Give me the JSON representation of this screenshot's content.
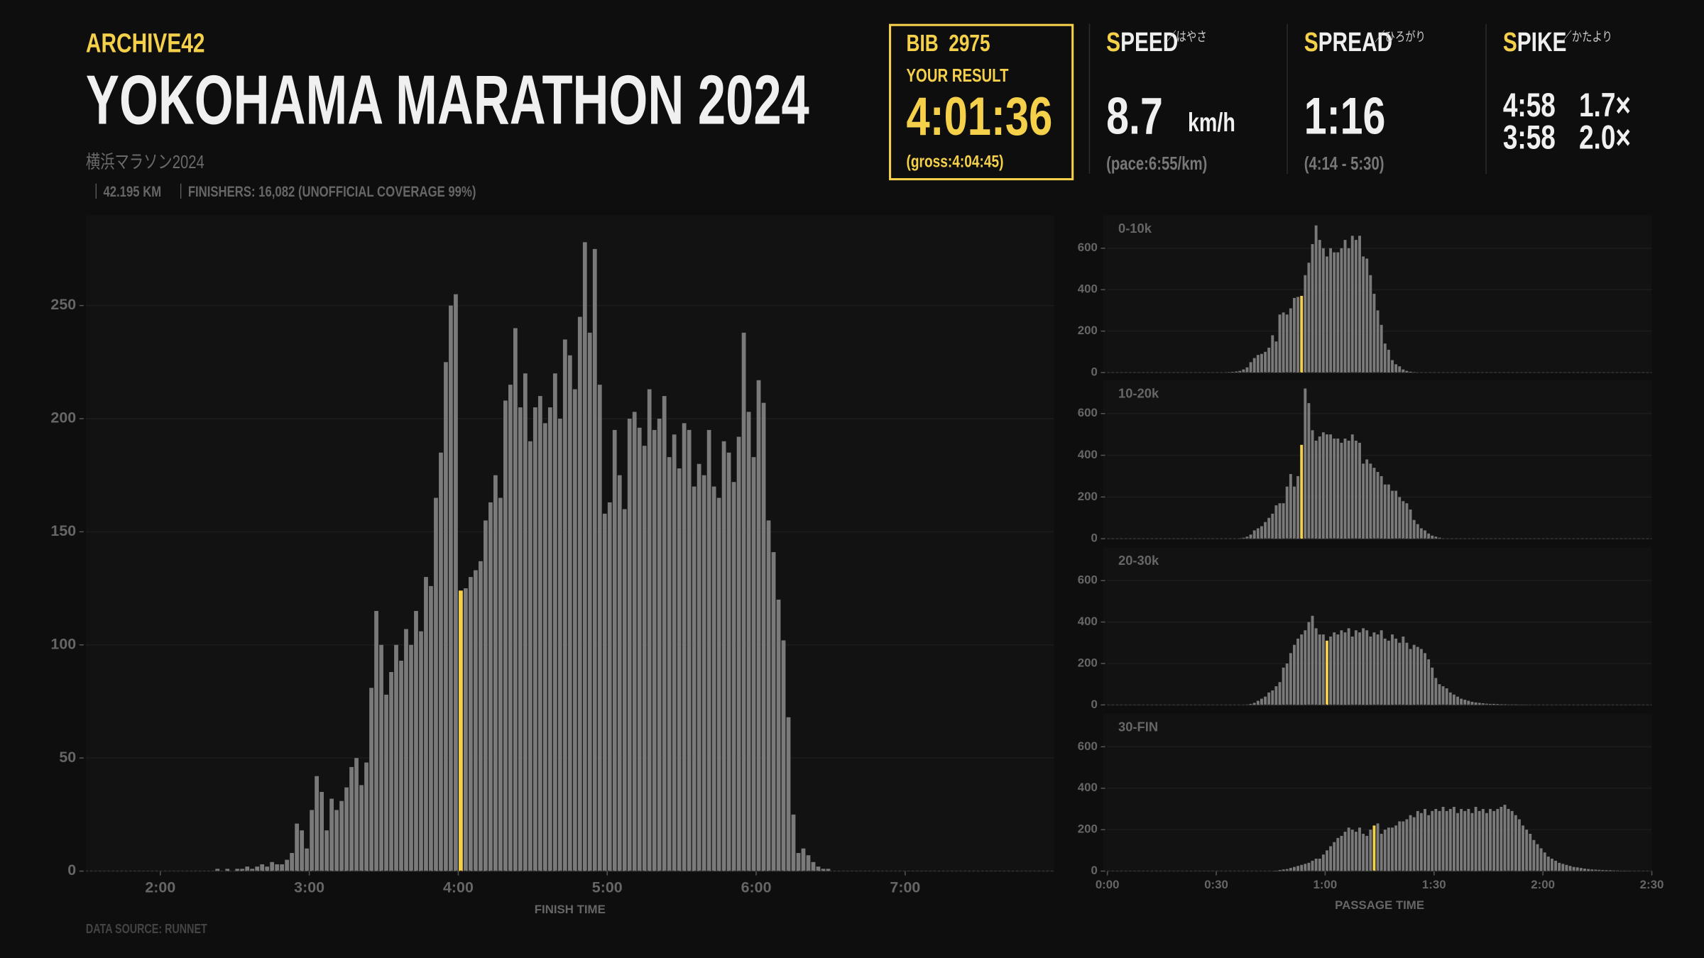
{
  "header": {
    "brand": "ARCHIVE42",
    "title": "YOKOHAMA MARATHON 2024",
    "subtitle": "横浜マラソン2024",
    "distance": "42.195 KM",
    "finishers": "FINISHERS: 16,082 (UNOFFICIAL  COVERAGE 99%)",
    "source": "DATA SOURCE: RUNNET"
  },
  "result": {
    "bib_label": "BIB",
    "bib": "2975",
    "label": "YOUR RESULT",
    "time": "4:01:36",
    "gross": "(gross:4:04:45)"
  },
  "speed": {
    "title": "SPEED",
    "kana": "／はやさ",
    "value": "8.7",
    "unit": "km/h",
    "note": "(pace:6:55/km)"
  },
  "spread": {
    "title": "SPREAD",
    "kana": "／ひろがり",
    "value": "1:16",
    "note": "(4:14 - 5:30)"
  },
  "spike": {
    "title": "SPIKE",
    "kana": "／かたより",
    "rows": [
      [
        "4:58",
        "1.7×"
      ],
      [
        "3:58",
        "2.0×"
      ]
    ]
  },
  "chart_data": [
    {
      "type": "histogram",
      "x_label": "FINISH TIME",
      "color": "#7a7a7a",
      "highlight_index": 50,
      "highlight_color": "#f5d04a",
      "grid": true,
      "xlim": [
        90,
        480
      ],
      "ylim": [
        0,
        290
      ],
      "xticks": [
        {
          "value": 120,
          "label": "2:00"
        },
        {
          "value": 180,
          "label": "3:00"
        },
        {
          "value": 240,
          "label": "4:00"
        },
        {
          "value": 300,
          "label": "5:00"
        },
        {
          "value": 360,
          "label": "6:00"
        },
        {
          "value": 420,
          "label": "7:00"
        }
      ],
      "yticks": [
        0,
        50,
        100,
        150,
        200,
        250
      ],
      "bins": [
        140,
        142,
        144,
        146,
        148,
        150,
        152,
        154,
        156,
        158,
        160,
        162,
        164,
        166,
        168,
        170,
        172,
        174,
        176,
        178,
        180,
        182,
        184,
        186,
        188,
        190,
        192,
        194,
        196,
        198,
        200,
        202,
        204,
        206,
        208,
        210,
        212,
        214,
        216,
        218,
        220,
        222,
        224,
        226,
        228,
        230,
        232,
        234,
        236,
        238,
        240,
        242,
        244,
        246,
        248,
        250,
        252,
        254,
        256,
        258,
        260,
        262,
        264,
        266,
        268,
        270,
        272,
        274,
        276,
        278,
        280,
        282,
        284,
        286,
        288,
        290,
        292,
        294,
        296,
        298,
        300,
        302,
        304,
        306,
        308,
        310,
        312,
        314,
        316,
        318,
        320,
        322,
        324,
        326,
        328,
        330,
        332,
        334,
        336,
        338,
        340,
        342,
        344,
        346,
        348,
        350,
        352,
        354,
        356,
        358,
        360,
        362,
        364,
        366,
        368,
        370,
        372,
        374,
        376,
        378,
        380,
        382,
        384,
        386,
        388,
        390
      ],
      "values": [
        0,
        1,
        0,
        1,
        0,
        1,
        1,
        2,
        1,
        2,
        3,
        2,
        4,
        3,
        3,
        5,
        8,
        21,
        18,
        10,
        27,
        42,
        35,
        18,
        32,
        27,
        31,
        37,
        46,
        50,
        38,
        48,
        81,
        115,
        100,
        78,
        88,
        100,
        93,
        107,
        100,
        115,
        106,
        130,
        126,
        165,
        185,
        225,
        250,
        255,
        124,
        125,
        130,
        133,
        137,
        155,
        163,
        175,
        165,
        208,
        215,
        240,
        205,
        220,
        190,
        205,
        210,
        198,
        205,
        220,
        200,
        235,
        228,
        213,
        245,
        278,
        238,
        275,
        215,
        158,
        163,
        195,
        175,
        160,
        200,
        203,
        196,
        188,
        213,
        195,
        200,
        210,
        183,
        193,
        178,
        198,
        195,
        170,
        180,
        175,
        195,
        170,
        165,
        190,
        185,
        172,
        192,
        238,
        203,
        183,
        217,
        207,
        155,
        141,
        120,
        102,
        68,
        25,
        8,
        10,
        7,
        4,
        2,
        1,
        1
      ]
    },
    {
      "type": "histogram",
      "title": "0-10k",
      "color": "#7a7a7a",
      "highlight_index": 20,
      "highlight_color": "#f5d04a",
      "grid": true,
      "xlim": [
        0,
        150
      ],
      "ylim": [
        0,
        760
      ],
      "yticks": [
        0,
        200,
        400,
        600
      ],
      "bins": [
        33,
        34,
        35,
        36,
        37,
        38,
        39,
        40,
        41,
        42,
        43,
        44,
        45,
        46,
        47,
        48,
        49,
        50,
        51,
        52,
        53,
        54,
        55,
        56,
        57,
        58,
        59,
        60,
        61,
        62,
        63,
        64,
        65,
        66,
        67,
        68,
        69,
        70,
        71,
        72,
        73,
        74,
        75,
        76,
        77,
        78,
        79,
        80,
        81,
        82,
        83,
        84,
        85
      ],
      "values": [
        2,
        3,
        5,
        8,
        15,
        25,
        50,
        70,
        85,
        90,
        100,
        120,
        180,
        150,
        280,
        290,
        280,
        310,
        360,
        365,
        370,
        470,
        530,
        620,
        710,
        640,
        600,
        560,
        600,
        580,
        580,
        600,
        640,
        600,
        660,
        640,
        660,
        560,
        550,
        470,
        380,
        300,
        230,
        140,
        110,
        60,
        40,
        30,
        15,
        8,
        4,
        2
      ]
    },
    {
      "type": "histogram",
      "title": "10-20k",
      "color": "#7a7a7a",
      "highlight_index": 17,
      "highlight_color": "#f5d04a",
      "grid": true,
      "xlim": [
        0,
        150
      ],
      "ylim": [
        0,
        760
      ],
      "yticks": [
        0,
        200,
        400,
        600
      ],
      "bins": [
        36,
        37,
        38,
        39,
        40,
        41,
        42,
        43,
        44,
        45,
        46,
        47,
        48,
        49,
        50,
        51,
        52,
        53,
        54,
        55,
        56,
        57,
        58,
        59,
        60,
        61,
        62,
        63,
        64,
        65,
        66,
        67,
        68,
        69,
        70,
        71,
        72,
        73,
        74,
        75,
        76,
        77,
        78,
        79,
        80,
        81,
        82,
        83,
        84,
        85,
        86,
        87,
        88,
        89,
        90,
        91,
        92
      ],
      "values": [
        2,
        5,
        10,
        20,
        40,
        50,
        60,
        80,
        100,
        120,
        160,
        170,
        170,
        250,
        310,
        250,
        300,
        450,
        720,
        650,
        520,
        470,
        490,
        510,
        500,
        500,
        480,
        480,
        460,
        480,
        470,
        500,
        470,
        460,
        360,
        380,
        360,
        340,
        320,
        300,
        260,
        260,
        230,
        230,
        200,
        180,
        170,
        140,
        90,
        70,
        50,
        40,
        25,
        15,
        10,
        5
      ]
    },
    {
      "type": "histogram",
      "title": "20-30k",
      "color": "#7a7a7a",
      "highlight_index": 22,
      "highlight_color": "#f5d04a",
      "grid": true,
      "xlim": [
        0,
        150
      ],
      "ylim": [
        0,
        760
      ],
      "yticks": [
        0,
        200,
        400,
        600
      ],
      "bins": [
        38,
        39,
        40,
        41,
        42,
        43,
        44,
        45,
        46,
        47,
        48,
        49,
        50,
        51,
        52,
        53,
        54,
        55,
        56,
        57,
        58,
        59,
        60,
        61,
        62,
        63,
        64,
        65,
        66,
        67,
        68,
        69,
        70,
        71,
        72,
        73,
        74,
        75,
        76,
        77,
        78,
        79,
        80,
        81,
        82,
        83,
        84,
        85,
        86,
        87,
        88,
        89,
        90,
        91,
        92,
        93,
        94,
        95,
        96,
        97,
        98,
        99,
        100,
        101,
        102,
        103,
        104,
        105,
        106,
        107,
        108,
        109,
        110,
        111,
        112,
        113,
        114,
        115,
        116
      ],
      "values": [
        2,
        5,
        10,
        20,
        30,
        40,
        60,
        70,
        90,
        110,
        180,
        200,
        250,
        290,
        320,
        340,
        360,
        400,
        430,
        370,
        340,
        340,
        310,
        330,
        350,
        340,
        360,
        350,
        370,
        330,
        360,
        350,
        370,
        360,
        330,
        350,
        340,
        360,
        320,
        310,
        340,
        320,
        300,
        330,
        300,
        270,
        290,
        280,
        270,
        250,
        220,
        180,
        130,
        100,
        90,
        80,
        60,
        50,
        40,
        30,
        25,
        20,
        15,
        12,
        10,
        8,
        6,
        5,
        5,
        4,
        3,
        3,
        2,
        2,
        2,
        1,
        1,
        1
      ]
    },
    {
      "type": "histogram",
      "title": "30-FIN",
      "x_label": "PASSAGE TIME",
      "color": "#7a7a7a",
      "highlight_index": 27,
      "highlight_color": "#f5d04a",
      "grid": true,
      "xlim": [
        0,
        150
      ],
      "ylim": [
        0,
        760
      ],
      "yticks": [
        0,
        200,
        400,
        600
      ],
      "xticks": [
        {
          "value": 0,
          "label": "0:00"
        },
        {
          "value": 30,
          "label": "0:30"
        },
        {
          "value": 60,
          "label": "1:00"
        },
        {
          "value": 90,
          "label": "1:30"
        },
        {
          "value": 120,
          "label": "2:00"
        },
        {
          "value": 150,
          "label": "2:30"
        }
      ],
      "bins": [
        46,
        47,
        48,
        49,
        50,
        51,
        52,
        53,
        54,
        55,
        56,
        57,
        58,
        59,
        60,
        61,
        62,
        63,
        64,
        65,
        66,
        67,
        68,
        69,
        70,
        71,
        72,
        73,
        74,
        75,
        76,
        77,
        78,
        79,
        80,
        81,
        82,
        83,
        84,
        85,
        86,
        87,
        88,
        89,
        90,
        91,
        92,
        93,
        94,
        95,
        96,
        97,
        98,
        99,
        100,
        101,
        102,
        103,
        104,
        105,
        106,
        107,
        108,
        109,
        110,
        111,
        112,
        113,
        114,
        115,
        116,
        117,
        118,
        119,
        120,
        121,
        122,
        123,
        124,
        125,
        126,
        127,
        128,
        129,
        130,
        131,
        132,
        133,
        134,
        135,
        136,
        137,
        138,
        139,
        140,
        141,
        142,
        143,
        144
      ],
      "values": [
        2,
        5,
        8,
        10,
        15,
        20,
        25,
        30,
        35,
        40,
        50,
        60,
        60,
        80,
        100,
        120,
        140,
        160,
        170,
        190,
        210,
        200,
        190,
        210,
        180,
        170,
        200,
        220,
        230,
        180,
        200,
        210,
        210,
        220,
        240,
        240,
        250,
        270,
        260,
        290,
        280,
        300,
        270,
        290,
        300,
        290,
        310,
        290,
        300,
        310,
        280,
        300,
        290,
        300,
        280,
        310,
        290,
        300,
        280,
        300,
        290,
        300,
        310,
        320,
        300,
        290,
        270,
        250,
        220,
        200,
        180,
        150,
        130,
        110,
        90,
        70,
        60,
        50,
        40,
        35,
        30,
        25,
        20,
        18,
        15,
        12,
        10,
        8,
        7,
        6,
        5,
        4,
        4,
        3,
        3,
        2,
        2,
        1
      ]
    }
  ]
}
